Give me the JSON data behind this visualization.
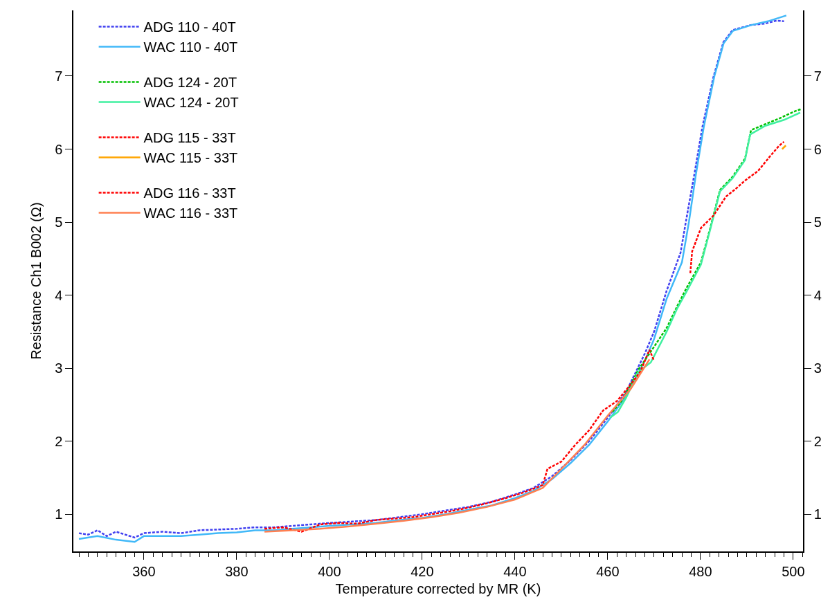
{
  "chart_data": {
    "type": "line",
    "xlabel": "Temperature corrected by MR (K)",
    "ylabel": "Resistance Ch1 B002 (Ω)",
    "xlim": [
      344.8,
      502.1
    ],
    "xticks": [
      360,
      380,
      400,
      420,
      440,
      460,
      480,
      500
    ],
    "ylim": [
      0.49,
      7.9
    ],
    "yticks": [
      1,
      2,
      3,
      4,
      5,
      6,
      7
    ],
    "y2lim": [
      0.49,
      7.9
    ],
    "y2ticks": [
      1,
      2,
      3,
      4,
      5,
      6,
      7
    ],
    "grid": false,
    "legend": "top left",
    "marker": "none",
    "series": [
      {
        "name": "ADG 110 - 40T",
        "color": "#4040f0",
        "line_style": "dashed",
        "x": [
          346,
          348,
          350,
          352,
          354,
          356,
          358,
          360,
          364,
          368,
          372,
          376,
          380,
          384,
          388,
          392,
          396,
          400,
          405,
          410,
          415,
          420,
          425,
          430,
          435,
          440,
          444,
          448,
          452,
          456,
          460,
          464,
          468,
          470,
          472.7,
          475.7,
          477,
          478.8,
          480.4,
          482.8,
          484.9,
          486.9,
          490.9,
          494,
          496.4,
          498
        ],
        "values": [
          0.74,
          0.72,
          0.78,
          0.7,
          0.76,
          0.72,
          0.68,
          0.74,
          0.76,
          0.74,
          0.78,
          0.79,
          0.8,
          0.82,
          0.82,
          0.84,
          0.86,
          0.88,
          0.9,
          0.92,
          0.96,
          1.0,
          1.05,
          1.1,
          1.17,
          1.27,
          1.36,
          1.52,
          1.74,
          2.0,
          2.32,
          2.68,
          3.2,
          3.5,
          4.06,
          4.58,
          5.06,
          5.7,
          6.3,
          6.99,
          7.46,
          7.63,
          7.7,
          7.72,
          7.76,
          7.75
        ]
      },
      {
        "name": "WAC 110 - 40T",
        "color": "#40b8f8",
        "line_style": "solid",
        "x": [
          346,
          350,
          354,
          358,
          360,
          364,
          368,
          372,
          376,
          380,
          384,
          388,
          392,
          396,
          400,
          405,
          410,
          415,
          420,
          425,
          430,
          435,
          440,
          444,
          448,
          452,
          456,
          460,
          464,
          468,
          470,
          472.7,
          476,
          477.5,
          479,
          480.7,
          483,
          485,
          487,
          491,
          494.5,
          498.5
        ],
        "values": [
          0.66,
          0.7,
          0.65,
          0.62,
          0.7,
          0.7,
          0.7,
          0.72,
          0.74,
          0.75,
          0.78,
          0.78,
          0.8,
          0.82,
          0.84,
          0.86,
          0.88,
          0.92,
          0.95,
          1.0,
          1.06,
          1.12,
          1.22,
          1.32,
          1.48,
          1.7,
          1.95,
          2.27,
          2.62,
          3.1,
          3.4,
          3.95,
          4.45,
          5.0,
          5.65,
          6.3,
          7.0,
          7.45,
          7.62,
          7.7,
          7.75,
          7.83
        ]
      },
      {
        "name": "ADG 124 - 20T",
        "color": "#00c000",
        "line_style": "dashed",
        "x": [
          461,
          463,
          465,
          466.6,
          469,
          472.7,
          475,
          477,
          480.1,
          482.1,
          484.2,
          486.9,
          489.6,
          490.9,
          494.3,
          497,
          500.4,
          501.8
        ],
        "values": [
          2.4,
          2.55,
          2.78,
          2.98,
          3.2,
          3.55,
          3.85,
          4.1,
          4.45,
          4.92,
          5.44,
          5.62,
          5.87,
          6.26,
          6.35,
          6.42,
          6.52,
          6.55
        ]
      },
      {
        "name": "WAC 124 - 20T",
        "color": "#40f0a0",
        "line_style": "solid",
        "x": [
          460.5,
          462.2,
          464,
          466.6,
          469.3,
          472.7,
          475,
          477,
          480.1,
          482.1,
          484.2,
          486.9,
          489.6,
          490.7,
          494,
          498,
          501.5
        ],
        "values": [
          2.32,
          2.4,
          2.6,
          2.95,
          3.08,
          3.5,
          3.82,
          4.05,
          4.42,
          4.9,
          5.42,
          5.6,
          5.85,
          6.2,
          6.32,
          6.4,
          6.5
        ]
      },
      {
        "name": "ADG 115 - 33T",
        "color": "#ff0000",
        "line_style": "dashed",
        "x": [
          477.8,
          478.2,
          480.1,
          482.8,
          485.5,
          487.5,
          489.6,
          492.4,
          495.1,
          497,
          498
        ],
        "values": [
          4.3,
          4.6,
          4.92,
          5.09,
          5.35,
          5.45,
          5.57,
          5.7,
          5.91,
          6.05,
          6.1
        ]
      },
      {
        "name": "WAC 115 - 33T",
        "color": "#ffa500",
        "line_style": "solid",
        "x": [
          497.6,
          498.4
        ],
        "values": [
          6.0,
          6.05
        ]
      },
      {
        "name": "ADG 116 - 33T",
        "color": "#ff0000",
        "line_style": "dashed",
        "x": [
          386,
          390,
          394,
          398,
          402,
          406,
          410,
          414,
          418,
          422,
          426,
          430,
          434,
          438,
          442,
          446,
          447,
          450,
          453,
          456,
          459,
          462,
          465,
          467,
          469,
          470
        ],
        "values": [
          0.8,
          0.82,
          0.76,
          0.86,
          0.88,
          0.87,
          0.92,
          0.94,
          0.96,
          1.0,
          1.04,
          1.09,
          1.15,
          1.22,
          1.3,
          1.4,
          1.62,
          1.72,
          1.95,
          2.15,
          2.42,
          2.55,
          2.78,
          2.95,
          3.25,
          3.1
        ]
      },
      {
        "name": "WAC 116 - 33T",
        "color": "#ff7f50",
        "line_style": "solid",
        "x": [
          386,
          392,
          398,
          404,
          410,
          416,
          422,
          428,
          434,
          440,
          446,
          450,
          455,
          460,
          465,
          469
        ],
        "values": [
          0.76,
          0.78,
          0.8,
          0.83,
          0.87,
          0.91,
          0.96,
          1.02,
          1.1,
          1.2,
          1.36,
          1.62,
          1.95,
          2.35,
          2.72,
          3.12
        ]
      }
    ]
  }
}
